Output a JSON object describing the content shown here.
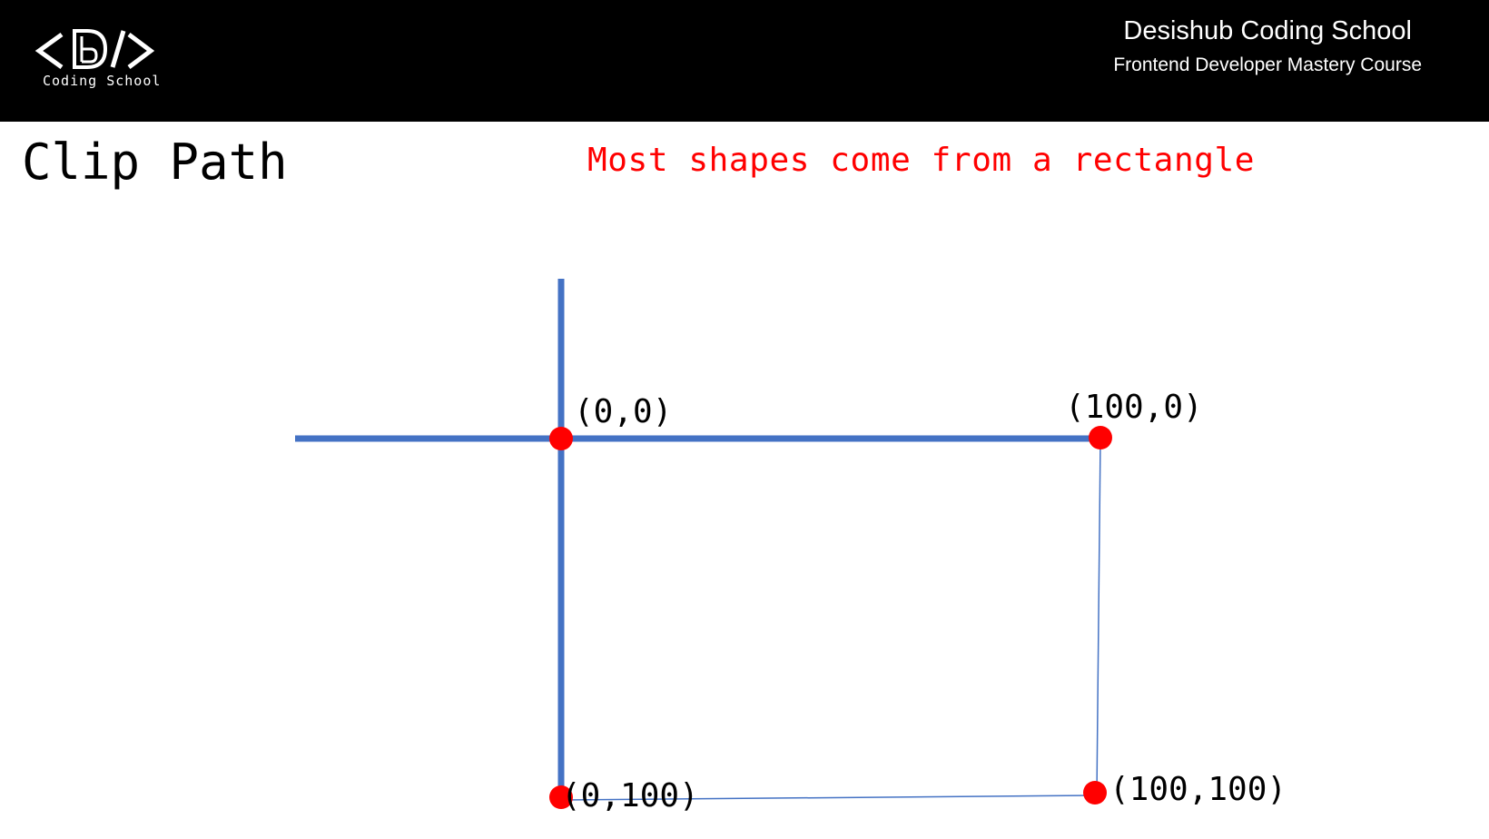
{
  "header": {
    "logo_text": "Coding School",
    "school_name": "Desishub Coding School",
    "course_name": "Frontend Developer Mastery Course"
  },
  "slide": {
    "title": "Clip Path",
    "subtitle": "Most shapes come from a rectangle"
  },
  "diagram": {
    "points": [
      {
        "label": "(0,0)"
      },
      {
        "label": "(100,0)"
      },
      {
        "label": "(0,100)"
      },
      {
        "label": "(100,100)"
      }
    ],
    "colors": {
      "axis": "#4472c4",
      "point": "#ff0000"
    }
  }
}
